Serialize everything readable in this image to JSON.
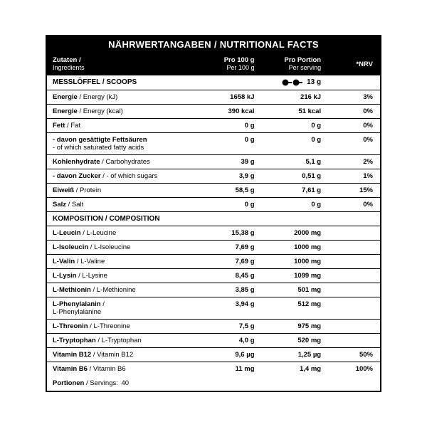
{
  "title": "NÄHRWERTANGABEN / NUTRITIONAL FACTS",
  "headers": {
    "col1_de": "Zutaten /",
    "col1_en": "Ingredients",
    "col2_de": "Pro 100 g",
    "col2_en": "Per 100 g",
    "col3_de": "Pro Portion",
    "col3_en": "Per serving",
    "col4": "*NRV"
  },
  "scoops": {
    "label": "MESSLÖFFEL / SCOOPS",
    "value": "13 g"
  },
  "nutrition": [
    {
      "de": "Energie",
      "en": "Energy (kJ)",
      "per100": "1658 kJ",
      "perServ": "216 kJ",
      "nrv": "3%"
    },
    {
      "de": "Energie",
      "en": "Energy (kcal)",
      "per100": "390 kcal",
      "perServ": "51 kcal",
      "nrv": "0%"
    },
    {
      "de": "Fett",
      "en": "Fat",
      "per100": "0 g",
      "perServ": "0 g",
      "nrv": "0%"
    },
    {
      "de": "- davon gesättigte Fettsäuren",
      "en": "- of which saturated fatty acids",
      "per100": "0 g",
      "perServ": "0 g",
      "nrv": "0%",
      "multi": true
    },
    {
      "de": "Kohlenhydrate",
      "en": "Carbohydrates",
      "per100": "39 g",
      "perServ": "5,1 g",
      "nrv": "2%"
    },
    {
      "de": "- davon Zucker",
      "en": "- of which sugars",
      "per100": "3,9 g",
      "perServ": "0,51 g",
      "nrv": "1%"
    },
    {
      "de": "Eiweiß",
      "en": "Protein",
      "per100": "58,5 g",
      "perServ": "7,61 g",
      "nrv": "15%"
    },
    {
      "de": "Salz",
      "en": "Salt",
      "per100": "0 g",
      "perServ": "0 g",
      "nrv": "0%"
    }
  ],
  "composition_label": "KOMPOSITION / COMPOSITION",
  "composition": [
    {
      "de": "L-Leucin",
      "en": "L-Leucine",
      "per100": "15,38 g",
      "perServ": "2000 mg",
      "nrv": ""
    },
    {
      "de": "L-Isoleucin",
      "en": "L-Isoleucine",
      "per100": "7,69 g",
      "perServ": "1000 mg",
      "nrv": ""
    },
    {
      "de": "L-Valin",
      "en": "L-Valine",
      "per100": "7,69 g",
      "perServ": "1000 mg",
      "nrv": ""
    },
    {
      "de": "L-Lysin",
      "en": "L-Lysine",
      "per100": "8,45 g",
      "perServ": "1099 mg",
      "nrv": ""
    },
    {
      "de": "L-Methionin",
      "en": "L-Methionine",
      "per100": "3,85 g",
      "perServ": "501 mg",
      "nrv": ""
    },
    {
      "de": "L-Phenylalanin",
      "en": "L-Phenylalanine",
      "per100": "3,94 g",
      "perServ": "512 mg",
      "nrv": "",
      "multi": true
    },
    {
      "de": "L-Threonin",
      "en": "L-Threonine",
      "per100": "7,5 g",
      "perServ": "975 mg",
      "nrv": ""
    },
    {
      "de": "L-Tryptophan",
      "en": "L-Tryptophan",
      "per100": "4,0 g",
      "perServ": "520 mg",
      "nrv": ""
    },
    {
      "de": "Vitamin B12",
      "en": "Vitamin B12",
      "per100": "9,6 µg",
      "perServ": "1,25 µg",
      "nrv": "50%"
    },
    {
      "de": "Vitamin B6",
      "en": "Vitamin B6",
      "per100": "11 mg",
      "perServ": "1,4 mg",
      "nrv": "100%"
    }
  ],
  "footer": {
    "de": "Portionen",
    "en": "Servings:",
    "value": "40"
  },
  "colors": {
    "fg": "#000000",
    "bg": "#ffffff"
  }
}
